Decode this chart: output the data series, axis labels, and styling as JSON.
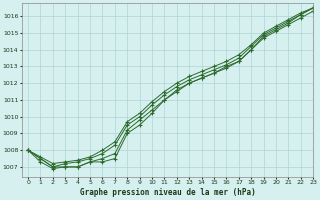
{
  "title": "Graphe pression niveau de la mer (hPa)",
  "background_color": "#d6f0f0",
  "grid_color": "#b0d4d4",
  "line_color": "#2d6b2d",
  "marker_color": "#2d6b2d",
  "xlim": [
    -0.5,
    23
  ],
  "ylim": [
    1006.4,
    1016.8
  ],
  "yticks": [
    1007,
    1008,
    1009,
    1010,
    1011,
    1012,
    1013,
    1014,
    1015,
    1016
  ],
  "xticks": [
    0,
    1,
    2,
    3,
    4,
    5,
    6,
    7,
    8,
    9,
    10,
    11,
    12,
    13,
    14,
    15,
    16,
    17,
    18,
    19,
    20,
    21,
    22,
    23
  ],
  "series": [
    [
      1008.0,
      1007.5,
      1007.0,
      1007.0,
      1007.0,
      1007.3,
      1007.3,
      1007.5,
      1009.0,
      1009.5,
      1010.2,
      1011.0,
      1011.5,
      1012.0,
      1012.3,
      1012.6,
      1013.0,
      1013.3,
      1014.0,
      1014.8,
      1015.2,
      1015.6,
      1016.1,
      1016.5
    ],
    [
      1008.0,
      1007.5,
      1007.0,
      1007.2,
      1007.3,
      1007.5,
      1007.8,
      1008.3,
      1009.5,
      1010.0,
      1010.7,
      1011.3,
      1011.8,
      1012.2,
      1012.5,
      1012.8,
      1013.1,
      1013.5,
      1014.2,
      1014.9,
      1015.3,
      1015.7,
      1016.1,
      1016.5
    ],
    [
      1008.0,
      1007.3,
      1006.9,
      1007.0,
      1007.0,
      1007.3,
      1007.5,
      1007.8,
      1009.2,
      1009.8,
      1010.4,
      1011.0,
      1011.6,
      1012.0,
      1012.3,
      1012.6,
      1012.9,
      1013.3,
      1014.0,
      1014.7,
      1015.1,
      1015.5,
      1015.9,
      1016.3
    ],
    [
      1008.0,
      1007.6,
      1007.2,
      1007.3,
      1007.4,
      1007.6,
      1008.0,
      1008.5,
      1009.7,
      1010.2,
      1010.9,
      1011.5,
      1012.0,
      1012.4,
      1012.7,
      1013.0,
      1013.3,
      1013.7,
      1014.3,
      1015.0,
      1015.4,
      1015.8,
      1016.2,
      1016.5
    ]
  ]
}
